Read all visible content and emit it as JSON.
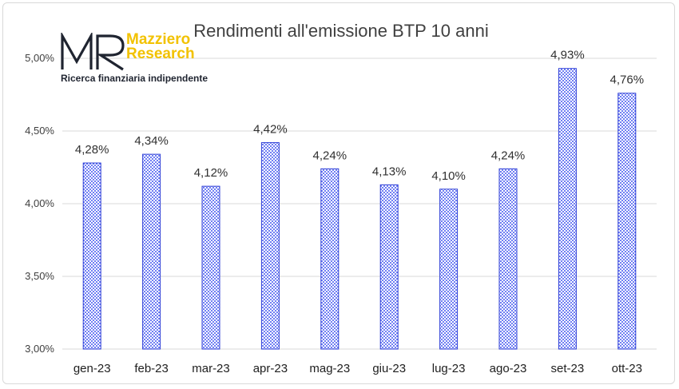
{
  "brand": {
    "logo_letters": "MR",
    "name_line1": "Mazziero",
    "name_line2": "Research",
    "tagline": "Ricerca finanziaria indipendente"
  },
  "chart_data": {
    "type": "bar",
    "title": "Rendimenti all'emissione BTP 10 anni",
    "xlabel": "",
    "ylabel": "",
    "categories": [
      "gen-23",
      "feb-23",
      "mar-23",
      "apr-23",
      "mag-23",
      "giu-23",
      "lug-23",
      "ago-23",
      "set-23",
      "ott-23"
    ],
    "values": [
      4.28,
      4.34,
      4.12,
      4.42,
      4.24,
      4.13,
      4.1,
      4.24,
      4.93,
      4.76
    ],
    "value_labels": [
      "4,28%",
      "4,34%",
      "4,12%",
      "4,42%",
      "4,24%",
      "4,13%",
      "4,10%",
      "4,24%",
      "4,93%",
      "4,76%"
    ],
    "ylim": [
      3.0,
      5.0
    ],
    "yticks": [
      3.0,
      3.5,
      4.0,
      4.5,
      5.0
    ],
    "ytick_labels": [
      "3,00%",
      "3,50%",
      "4,00%",
      "4,50%",
      "5,00%"
    ],
    "grid": true,
    "legend": "none",
    "colors": {
      "bar_fill": "#5b6ef5",
      "bar_border": "#2f3fd6",
      "grid": "#d9d9d9"
    }
  }
}
